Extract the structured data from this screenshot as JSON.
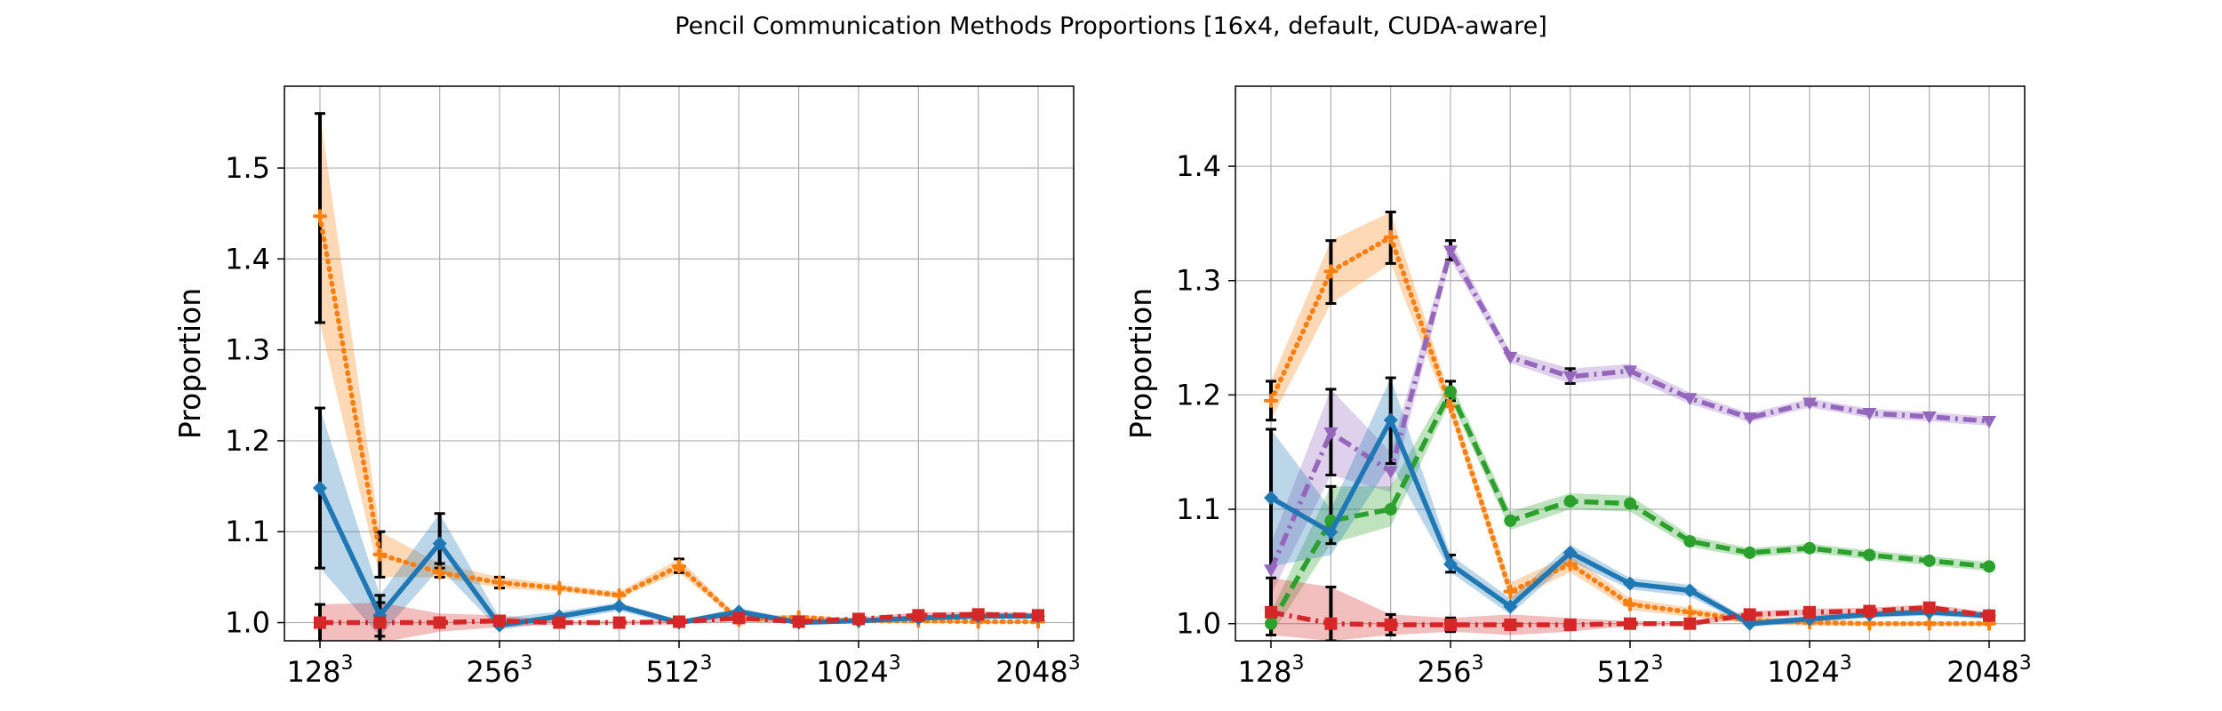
{
  "figure_title": "Pencil Communication Methods Proportions [16x4, default, CUDA-aware]",
  "colors": {
    "blue": "#1f77b4",
    "orange": "#ff7f0e",
    "green": "#2ca02c",
    "red": "#d62728",
    "purple": "#9467bd",
    "grid": "#b0b0b0"
  },
  "chart_data": [
    {
      "type": "line",
      "title": "",
      "xlabel": "",
      "ylabel": "Proportion",
      "x_scale": "log2",
      "x": [
        128,
        161.3,
        203.2,
        256,
        322.5,
        406.4,
        512,
        645.1,
        812.7,
        1024,
        1290.2,
        1625.5,
        2048
      ],
      "x_ticks": [
        {
          "value": 128,
          "base": "128",
          "exp": "3"
        },
        {
          "value": 256,
          "base": "256",
          "exp": "3"
        },
        {
          "value": 512,
          "base": "512",
          "exp": "3"
        },
        {
          "value": 1024,
          "base": "1024",
          "exp": "3"
        },
        {
          "value": 2048,
          "base": "2048",
          "exp": "3"
        }
      ],
      "ylim": [
        0.98,
        1.59
      ],
      "y_ticks": [
        1.0,
        1.1,
        1.2,
        1.3,
        1.4,
        1.5
      ],
      "y_tick_labels": [
        "1.0",
        "1.1",
        "1.2",
        "1.3",
        "1.4",
        "1.5"
      ],
      "grid": true,
      "series": [
        {
          "color": "orange",
          "style": "dotted",
          "marker": "plus",
          "values": [
            1.447,
            1.075,
            1.055,
            1.044,
            1.038,
            1.03,
            1.062,
            1.003,
            1.006,
            1.002,
            1.002,
            1.001,
            1.001
          ],
          "band": [
            [
              1.33,
              1.56
            ],
            [
              1.05,
              1.1
            ],
            [
              1.05,
              1.065
            ],
            [
              1.038,
              1.05
            ],
            [
              1.034,
              1.042
            ],
            [
              1.027,
              1.034
            ],
            [
              1.055,
              1.07
            ],
            [
              1.0,
              1.006
            ],
            [
              1.003,
              1.009
            ],
            [
              1.0,
              1.004
            ],
            [
              1.0,
              1.004
            ],
            [
              0.999,
              1.003
            ],
            [
              0.999,
              1.003
            ]
          ],
          "errorbars": [
            0,
            1,
            2,
            3,
            6
          ]
        },
        {
          "color": "blue",
          "style": "solid",
          "marker": "diamond",
          "values": [
            1.148,
            1.008,
            1.087,
            0.997,
            1.007,
            1.018,
            1.0,
            1.012,
            1.0,
            1.002,
            1.005,
            1.007,
            1.007
          ],
          "band": [
            [
              1.06,
              1.236
            ],
            [
              0.985,
              1.03
            ],
            [
              1.06,
              1.12
            ],
            [
              0.992,
              1.005
            ],
            [
              1.002,
              1.012
            ],
            [
              1.013,
              1.022
            ],
            [
              0.997,
              1.003
            ],
            [
              1.008,
              1.016
            ],
            [
              0.998,
              1.003
            ],
            [
              1.0,
              1.004
            ],
            [
              1.003,
              1.008
            ],
            [
              1.005,
              1.01
            ],
            [
              1.005,
              1.01
            ]
          ],
          "errorbars": [
            0,
            1,
            2
          ]
        },
        {
          "color": "red",
          "style": "dashdot",
          "marker": "square",
          "values": [
            1.0,
            1.0,
            1.0,
            1.002,
            1.0,
            1.0,
            1.001,
            1.005,
            1.001,
            1.004,
            1.008,
            1.009,
            1.008
          ],
          "band": [
            [
              0.978,
              1.02
            ],
            [
              0.978,
              1.022
            ],
            [
              0.99,
              1.01
            ],
            [
              0.995,
              1.008
            ],
            [
              0.998,
              1.002
            ],
            [
              0.998,
              1.002
            ],
            [
              0.998,
              1.004
            ],
            [
              1.002,
              1.008
            ],
            [
              0.999,
              1.003
            ],
            [
              1.002,
              1.006
            ],
            [
              1.005,
              1.011
            ],
            [
              1.006,
              1.012
            ],
            [
              1.005,
              1.011
            ]
          ],
          "errorbars": [
            0,
            1
          ]
        }
      ]
    },
    {
      "type": "line",
      "title": "",
      "xlabel": "",
      "ylabel": "Proportion",
      "x_scale": "log2",
      "x": [
        128,
        161.3,
        203.2,
        256,
        322.5,
        406.4,
        512,
        645.1,
        812.7,
        1024,
        1290.2,
        1625.5,
        2048
      ],
      "x_ticks": [
        {
          "value": 128,
          "base": "128",
          "exp": "3"
        },
        {
          "value": 256,
          "base": "256",
          "exp": "3"
        },
        {
          "value": 512,
          "base": "512",
          "exp": "3"
        },
        {
          "value": 1024,
          "base": "1024",
          "exp": "3"
        },
        {
          "value": 2048,
          "base": "2048",
          "exp": "3"
        }
      ],
      "ylim": [
        0.985,
        1.47
      ],
      "y_ticks": [
        1.0,
        1.1,
        1.2,
        1.3,
        1.4
      ],
      "y_tick_labels": [
        "1.0",
        "1.1",
        "1.2",
        "1.3",
        "1.4"
      ],
      "grid": true,
      "series": [
        {
          "color": "orange",
          "style": "dotted",
          "marker": "plus",
          "values": [
            1.195,
            1.308,
            1.338,
            1.19,
            1.028,
            1.052,
            1.017,
            1.01,
            1.003,
            1.001,
            1.0,
            1.0,
            1.0
          ],
          "band": [
            [
              1.178,
              1.212
            ],
            [
              1.28,
              1.335
            ],
            [
              1.315,
              1.36
            ],
            [
              1.182,
              1.198
            ],
            [
              1.02,
              1.036
            ],
            [
              1.045,
              1.06
            ],
            [
              1.012,
              1.022
            ],
            [
              1.006,
              1.014
            ],
            [
              1.0,
              1.006
            ],
            [
              0.998,
              1.004
            ],
            [
              0.998,
              1.002
            ],
            [
              0.998,
              1.002
            ],
            [
              0.998,
              1.002
            ]
          ],
          "errorbars": [
            0,
            1,
            2
          ]
        },
        {
          "color": "purple",
          "style": "dashdot",
          "marker": "triangle-down",
          "values": [
            1.047,
            1.167,
            1.133,
            1.326,
            1.233,
            1.216,
            1.221,
            1.197,
            1.18,
            1.193,
            1.184,
            1.181,
            1.177
          ],
          "band": [
            [
              1.025,
              1.07
            ],
            [
              1.13,
              1.205
            ],
            [
              1.115,
              1.15
            ],
            [
              1.318,
              1.335
            ],
            [
              1.228,
              1.238
            ],
            [
              1.21,
              1.223
            ],
            [
              1.215,
              1.227
            ],
            [
              1.192,
              1.202
            ],
            [
              1.176,
              1.184
            ],
            [
              1.189,
              1.197
            ],
            [
              1.18,
              1.188
            ],
            [
              1.177,
              1.185
            ],
            [
              1.173,
              1.181
            ]
          ],
          "errorbars": [
            1,
            3,
            5
          ]
        },
        {
          "color": "green",
          "style": "dashed",
          "marker": "circle",
          "values": [
            1.0,
            1.09,
            1.1,
            1.203,
            1.09,
            1.107,
            1.105,
            1.072,
            1.062,
            1.066,
            1.06,
            1.055,
            1.05
          ],
          "band": [
            [
              0.99,
              1.01
            ],
            [
              1.07,
              1.12
            ],
            [
              1.085,
              1.12
            ],
            [
              1.195,
              1.212
            ],
            [
              1.082,
              1.098
            ],
            [
              1.1,
              1.114
            ],
            [
              1.098,
              1.112
            ],
            [
              1.067,
              1.077
            ],
            [
              1.058,
              1.066
            ],
            [
              1.062,
              1.07
            ],
            [
              1.056,
              1.064
            ],
            [
              1.051,
              1.059
            ],
            [
              1.046,
              1.054
            ]
          ],
          "errorbars": [
            1,
            3
          ]
        },
        {
          "color": "blue",
          "style": "solid",
          "marker": "diamond",
          "values": [
            1.11,
            1.08,
            1.178,
            1.052,
            1.015,
            1.062,
            1.035,
            1.029,
            1.0,
            1.004,
            1.008,
            1.01,
            1.007
          ],
          "band": [
            [
              1.05,
              1.17
            ],
            [
              1.06,
              1.1
            ],
            [
              1.14,
              1.215
            ],
            [
              1.045,
              1.06
            ],
            [
              1.008,
              1.022
            ],
            [
              1.055,
              1.069
            ],
            [
              1.03,
              1.04
            ],
            [
              1.024,
              1.034
            ],
            [
              0.997,
              1.003
            ],
            [
              1.001,
              1.007
            ],
            [
              1.005,
              1.011
            ],
            [
              1.007,
              1.013
            ],
            [
              1.004,
              1.01
            ]
          ],
          "errorbars": [
            0,
            2,
            3
          ]
        },
        {
          "color": "red",
          "style": "dashdot",
          "marker": "square",
          "values": [
            1.01,
            1.0,
            0.999,
            0.999,
            0.999,
            0.999,
            1.0,
            1.0,
            1.008,
            1.01,
            1.011,
            1.014,
            1.007
          ],
          "band": [
            [
              0.99,
              1.04
            ],
            [
              0.985,
              1.032
            ],
            [
              0.99,
              1.008
            ],
            [
              0.993,
              1.005
            ],
            [
              0.99,
              1.008
            ],
            [
              0.993,
              1.005
            ],
            [
              0.998,
              1.002
            ],
            [
              0.998,
              1.002
            ],
            [
              1.005,
              1.011
            ],
            [
              1.007,
              1.013
            ],
            [
              1.008,
              1.014
            ],
            [
              1.011,
              1.017
            ],
            [
              1.004,
              1.01
            ]
          ],
          "errorbars": [
            0,
            1,
            2,
            3
          ]
        }
      ]
    }
  ]
}
